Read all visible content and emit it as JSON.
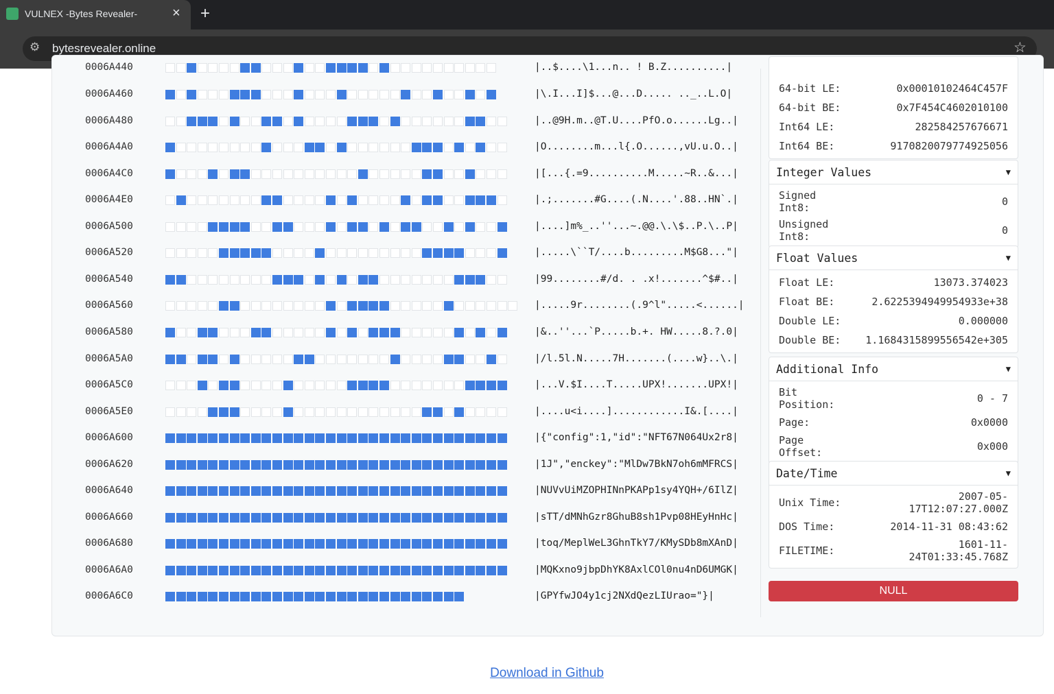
{
  "browser": {
    "tab_title": "VULNEX -Bytes Revealer-",
    "url": "bytesrevealer.online"
  },
  "hex_rows": [
    {
      "address": "0006A440",
      "ascii": "|..$....\\1...n.. ! B.Z..........|"
    },
    {
      "address": "0006A460",
      "ascii": "|\\.I...I]$...@...D..... .._..L.O|"
    },
    {
      "address": "0006A480",
      "ascii": "|..@9H.m..@T.U....PfO.o......Lg..|"
    },
    {
      "address": "0006A4A0",
      "ascii": "|O........m...l{.O......,vU.u.O..|"
    },
    {
      "address": "0006A4C0",
      "ascii": "|[...{.=9..........M.....~R..&...|"
    },
    {
      "address": "0006A4E0",
      "ascii": "|.;.......#G....(.N....'.88..HN`.|"
    },
    {
      "address": "0006A500",
      "ascii": "|....]m%_..''...~.@@.\\.\\$..P.\\..P|"
    },
    {
      "address": "0006A520",
      "ascii": "|.....\\``T/....b.........M$G8...\"|"
    },
    {
      "address": "0006A540",
      "ascii": "|99........#/d. . .x!.......^$#..|"
    },
    {
      "address": "0006A560",
      "ascii": "|.....9r........(.9^l\".....<......|"
    },
    {
      "address": "0006A580",
      "ascii": "|&..''...`P.....b.+. HW.....8.?.0|"
    },
    {
      "address": "0006A5A0",
      "ascii": "|/l.5l.N.....7H.......(....w}..\\.|"
    },
    {
      "address": "0006A5C0",
      "ascii": "|...V.$I....T.....UPX!.......UPX!|"
    },
    {
      "address": "0006A5E0",
      "ascii": "|....u<i....]............I&.[....|"
    },
    {
      "address": "0006A600",
      "ascii": "|{\"config\":1,\"id\":\"NFT67N064Ux2r8|"
    },
    {
      "address": "0006A620",
      "ascii": "|1J\",\"enckey\":\"MlDw7BkN7oh6mMFRCS|"
    },
    {
      "address": "0006A640",
      "ascii": "|NUVvUiMZOPHINnPKAPp1sy4YQH+/6IlZ|"
    },
    {
      "address": "0006A660",
      "ascii": "|sTT/dMNhGzr8GhuB8sh1Pvp08HEyHnHc|"
    },
    {
      "address": "0006A680",
      "ascii": "|toq/MeplWeL3GhnTkY7/KMySDb8mXAnD|"
    },
    {
      "address": "0006A6A0",
      "ascii": "|MQKxno9jbpDhYK8AxlCOl0nu4nD6UMGK|"
    },
    {
      "address": "0006A6C0",
      "ascii": "|GPYfwJO4y1cj2NXdQezLIUrao=\"}|"
    }
  ],
  "panel": {
    "sections": [
      {
        "rows": [
          {
            "label": "64-bit LE:",
            "value": "0x00010102464C457F"
          },
          {
            "label": "64-bit BE:",
            "value": "0x7F454C4602010100"
          },
          {
            "label": "Int64 LE:",
            "value": "282584257676671"
          },
          {
            "label": "Int64 BE:",
            "value": "9170820079774925056"
          }
        ]
      },
      {
        "title": "Integer Values",
        "rows": [
          {
            "label": "Signed Int8:",
            "value": "0"
          },
          {
            "label": "Unsigned Int8:",
            "value": "0"
          }
        ]
      },
      {
        "title": "Float Values",
        "rows": [
          {
            "label": "Float LE:",
            "value": "13073.374023"
          },
          {
            "label": "Float BE:",
            "value": "2.6225394949954933e+38"
          },
          {
            "label": "Double LE:",
            "value": "0.000000"
          },
          {
            "label": "Double BE:",
            "value": "1.1684315899556542e+305"
          }
        ]
      },
      {
        "title": "Additional Info",
        "rows": [
          {
            "label": "Bit Position:",
            "value": "0 - 7"
          },
          {
            "label": "Page:",
            "value": "0x0000"
          },
          {
            "label": "Page Offset:",
            "value": "0x000"
          }
        ]
      },
      {
        "title": "Date/Time",
        "rows": [
          {
            "label": "Unix Time:",
            "value": "2007-05-17T12:07:27.000Z"
          },
          {
            "label": "DOS Time:",
            "value": "2014-11-31 08:43:62"
          },
          {
            "label": "FILETIME:",
            "value": "1601-11-24T01:33:45.768Z"
          }
        ]
      }
    ],
    "button": "NULL"
  },
  "footer": {
    "link": "Download in Github"
  }
}
